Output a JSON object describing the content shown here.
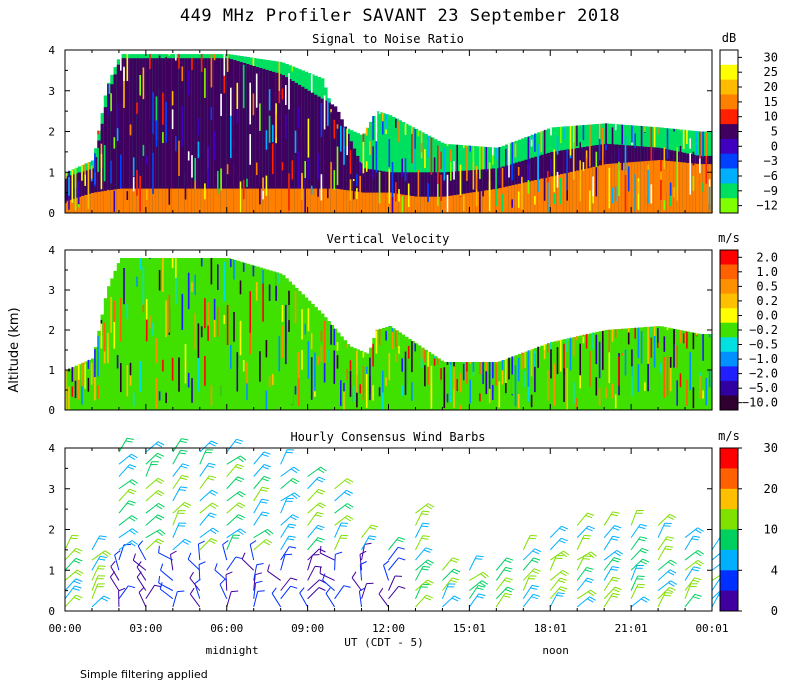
{
  "title": "449 MHz Profiler SAVANT 23 September 2018",
  "footnote": "Simple filtering applied",
  "y_axis_label": "Altitude (km)",
  "x_axis": {
    "label": "UT (CDT - 5)",
    "tick_labels": [
      "00:00",
      "03:00",
      "06:00",
      "09:00",
      "12:00",
      "15:01",
      "18:01",
      "21:01",
      "00:01"
    ],
    "tick_hours": [
      0,
      3,
      6,
      9,
      12,
      15,
      18,
      21,
      24
    ],
    "local_labels": [
      {
        "text": "midnight",
        "hour": 6.2
      },
      {
        "text": "noon",
        "hour": 18.2
      }
    ]
  },
  "chart_data": [
    {
      "type": "heatmap",
      "title": "Signal to Noise Ratio",
      "units": "dB",
      "ylim": [
        0,
        4
      ],
      "yticks": [
        "0",
        "1",
        "2",
        "3",
        "4"
      ],
      "colorbar": {
        "labels": [
          "30",
          "25",
          "20",
          "15",
          "10",
          "5",
          "0",
          "−3",
          "−6",
          "−9",
          "−12"
        ],
        "colors": [
          "#ffffff",
          "#ffff00",
          "#ffbb00",
          "#ff8000",
          "#ff2000",
          "#400060",
          "#4000c0",
          "#0040ff",
          "#00b0ff",
          "#00e060",
          "#80ff00"
        ]
      },
      "bands": [
        {
          "name": "surface",
          "hours": [
            0,
            1,
            2,
            3,
            4,
            6,
            8,
            10,
            11,
            12,
            13,
            14,
            16,
            18,
            20,
            22,
            23.5
          ],
          "top_km": [
            0.3,
            0.5,
            0.6,
            0.6,
            0.6,
            0.6,
            0.6,
            0.6,
            0.5,
            0.5,
            0.4,
            0.4,
            0.6,
            0.9,
            1.2,
            1.3,
            1.2
          ],
          "color": "#ff8000"
        },
        {
          "name": "middle",
          "hours": [
            0,
            1,
            1.5,
            2,
            4,
            6,
            8,
            9.5,
            10,
            11,
            12,
            14,
            16,
            18,
            20,
            22,
            23.5
          ],
          "top_km": [
            0.9,
            1.1,
            2.8,
            3.8,
            3.8,
            3.8,
            3.4,
            2.8,
            2.6,
            1.1,
            1.0,
            1.0,
            1.1,
            1.5,
            1.7,
            1.6,
            1.4
          ],
          "color": "#400060"
        },
        {
          "name": "top",
          "hours": [
            0,
            1,
            1.5,
            2,
            4,
            6,
            8,
            9.5,
            10,
            11,
            11.5,
            12,
            14,
            16,
            18,
            20,
            22,
            23.5
          ],
          "top_km": [
            1.0,
            1.3,
            3.1,
            3.9,
            3.9,
            3.9,
            3.7,
            3.3,
            2.2,
            1.9,
            2.5,
            2.4,
            1.7,
            1.6,
            2.1,
            2.2,
            2.1,
            2.0
          ],
          "color": "#00e060"
        }
      ]
    },
    {
      "type": "heatmap",
      "title": "Vertical Velocity",
      "units": "m/s",
      "ylim": [
        0,
        4
      ],
      "yticks": [
        "0",
        "1",
        "2",
        "3",
        "4"
      ],
      "colorbar": {
        "labels": [
          "2.0",
          "1.0",
          "0.5",
          "0.2",
          "0.0",
          "−0.2",
          "−0.5",
          "−1.0",
          "−2.0",
          "−5.0",
          "−10.0"
        ],
        "colors": [
          "#ff0000",
          "#ff6000",
          "#ff9000",
          "#ffc000",
          "#ffff00",
          "#40e000",
          "#00e0e0",
          "#0090ff",
          "#2020ff",
          "#3000a0",
          "#300030"
        ]
      },
      "bands": [
        {
          "name": "data-top",
          "hours": [
            0,
            1,
            1.5,
            2,
            4,
            6,
            8,
            9.5,
            10.5,
            11.2,
            11.5,
            12,
            14,
            16,
            18,
            20,
            22,
            23.5
          ],
          "top_km": [
            1.0,
            1.3,
            3.0,
            3.8,
            3.8,
            3.8,
            3.4,
            2.4,
            1.6,
            1.4,
            2.0,
            2.1,
            1.2,
            1.2,
            1.7,
            2.0,
            2.1,
            1.9
          ],
          "color": "#40e000"
        }
      ]
    },
    {
      "type": "scatter",
      "title": "Hourly Consensus Wind Barbs",
      "units": "m/s",
      "ylim": [
        0,
        4
      ],
      "yticks": [
        "0",
        "1",
        "2",
        "3",
        "4"
      ],
      "colorbar": {
        "labels": [
          "30",
          "20",
          "10",
          "4",
          "0"
        ],
        "colors": [
          "#ff0000",
          "#ff6000",
          "#ffc000",
          "#80e000",
          "#00d060",
          "#00b0ff",
          "#0030ff",
          "#4000a0"
        ]
      },
      "barb_rows_km": [
        0.1,
        0.3,
        0.5,
        0.75,
        1.0,
        1.25,
        1.5,
        1.8,
        2.1,
        2.4,
        2.7,
        3.0,
        3.3,
        3.6,
        3.9
      ],
      "max_height_km_by_hour": [
        1.6,
        1.6,
        3.9,
        3.9,
        3.9,
        3.9,
        3.9,
        3.8,
        3.6,
        3.3,
        3.0,
        2.0,
        1.6,
        2.6,
        1.2,
        1.0,
        1.2,
        1.6,
        2.0,
        2.2,
        2.3,
        2.2,
        2.2,
        2.0,
        1.6
      ]
    }
  ]
}
